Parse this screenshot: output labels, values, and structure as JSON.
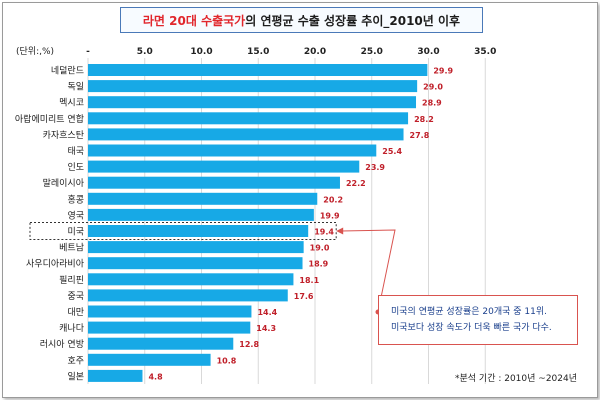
{
  "title": {
    "highlight": "라면 20대 수출국가",
    "rest": "의 연평균 수출 성장률 추이_2010년 이후"
  },
  "unit_label": "(단위:,%)",
  "source_note": "*분석 기간 : 2010년 ~2024년",
  "callout": {
    "line1": "미국의 연평균 성장률은 20개국 중 11위.",
    "line2": "미국보다 성장 속도가 더욱 빠른 국가 다수."
  },
  "colors": {
    "bar": "#17a9e6",
    "value_label": "#c0202a",
    "callout_border": "#d9534f",
    "callout_text": "#1a3f8c",
    "title_accent": "#e1262c"
  },
  "chart_data": {
    "type": "bar",
    "orientation": "horizontal",
    "categories": [
      "네덜란드",
      "독일",
      "멕시코",
      "아랍에미리트 연합",
      "카자흐스탄",
      "태국",
      "인도",
      "말레이시아",
      "홍콩",
      "영국",
      "미국",
      "베트남",
      "사우디아라비아",
      "필리핀",
      "중국",
      "대만",
      "캐나다",
      "러시아 연방",
      "호주",
      "일본"
    ],
    "values": [
      29.9,
      29.0,
      28.9,
      28.2,
      27.8,
      25.4,
      23.9,
      22.2,
      20.2,
      19.9,
      19.4,
      19.0,
      18.9,
      18.1,
      17.6,
      14.4,
      14.3,
      12.8,
      10.8,
      4.8
    ],
    "value_labels": [
      "29.9",
      "29.0",
      "28.9",
      "28.2",
      "27.8",
      "25.4",
      "23.9",
      "22.2",
      "20.2",
      "19.9",
      "19.4",
      "19.0",
      "18.9",
      "18.1",
      "17.6",
      "14.4",
      "14.3",
      "12.8",
      "10.8",
      "4.8"
    ],
    "x_ticks": [
      "-",
      "5.0",
      "10.0",
      "15.0",
      "20.0",
      "25.0",
      "30.0",
      "35.0"
    ],
    "xlim": [
      0,
      35
    ],
    "highlighted_category": "미국",
    "grid": true
  }
}
